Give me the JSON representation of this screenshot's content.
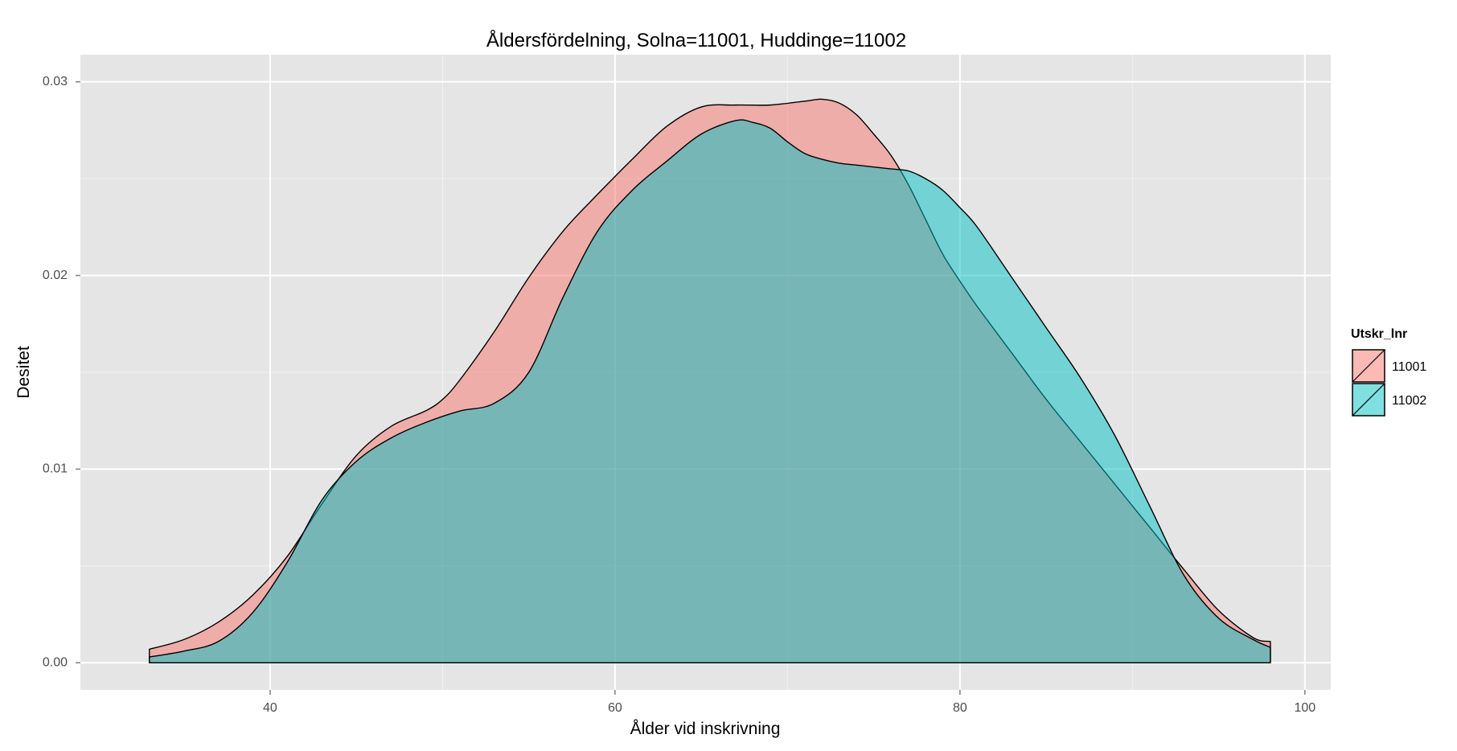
{
  "chart_data": {
    "type": "area",
    "title": "Åldersfördelning, Solna=11001, Huddinge=11002",
    "xlabel": "Ålder vid inskrivning",
    "ylabel": "Desitet",
    "xlim": [
      29,
      101.5
    ],
    "ylim": [
      -0.0014,
      0.0314
    ],
    "x_ticks": [
      40,
      60,
      80,
      100
    ],
    "x_tick_labels": [
      "40",
      "60",
      "80",
      "100"
    ],
    "y_ticks": [
      0.0,
      0.01,
      0.02,
      0.03
    ],
    "y_tick_labels": [
      "0.00",
      "0.01",
      "0.02",
      "0.03"
    ],
    "grid": true,
    "background": "#e5e5e5",
    "legend": {
      "title": "Utskr_lnr",
      "position": "right"
    },
    "series": [
      {
        "name": "11001",
        "color": "#f8766d",
        "x": [
          33,
          35,
          37,
          39,
          41,
          43,
          45,
          47,
          49,
          50,
          51,
          53,
          55,
          57,
          59,
          61,
          63,
          65,
          67,
          69,
          71,
          72,
          73,
          74,
          75,
          76,
          77,
          78,
          79,
          80,
          81,
          83,
          85,
          87,
          89,
          91,
          93,
          95,
          97,
          98
        ],
        "y": [
          0.0007,
          0.0012,
          0.0021,
          0.0035,
          0.0055,
          0.0082,
          0.0107,
          0.0122,
          0.013,
          0.0136,
          0.0146,
          0.0171,
          0.0199,
          0.0223,
          0.0242,
          0.026,
          0.0277,
          0.0287,
          0.0288,
          0.0288,
          0.029,
          0.0291,
          0.0289,
          0.0283,
          0.0273,
          0.0262,
          0.0247,
          0.0229,
          0.0211,
          0.0197,
          0.0184,
          0.016,
          0.0136,
          0.0114,
          0.0092,
          0.007,
          0.0048,
          0.0027,
          0.0013,
          0.0011
        ]
      },
      {
        "name": "11002",
        "color": "#00bfc4",
        "x": [
          33,
          35,
          37,
          39,
          41,
          43,
          45,
          47,
          49,
          51,
          53,
          55,
          57,
          59,
          61,
          63,
          65,
          67,
          68,
          69,
          70,
          71,
          72,
          73,
          74,
          75,
          76,
          77,
          78,
          79,
          80,
          81,
          83,
          85,
          87,
          89,
          91,
          93,
          95,
          97,
          98
        ],
        "y": [
          0.0003,
          0.0006,
          0.0011,
          0.0026,
          0.0052,
          0.0084,
          0.0104,
          0.0116,
          0.0124,
          0.013,
          0.0134,
          0.015,
          0.0189,
          0.0223,
          0.0244,
          0.0259,
          0.0273,
          0.028,
          0.0279,
          0.0276,
          0.0269,
          0.0263,
          0.026,
          0.0258,
          0.0257,
          0.0256,
          0.0255,
          0.0254,
          0.025,
          0.0244,
          0.0235,
          0.0225,
          0.0199,
          0.0173,
          0.0147,
          0.0117,
          0.0081,
          0.0045,
          0.0023,
          0.0012,
          0.0008
        ]
      }
    ]
  }
}
